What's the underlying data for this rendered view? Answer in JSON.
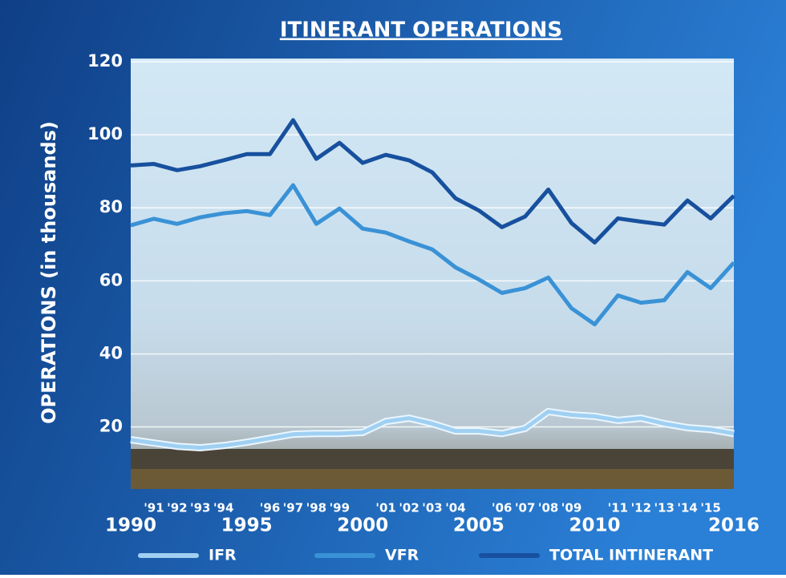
{
  "chart_data": {
    "type": "line",
    "title": "ITINERANT OPERATIONS",
    "y_label": "OPERATIONS (in thousands)",
    "x": [
      1990,
      1991,
      1992,
      1993,
      1994,
      1995,
      1996,
      1997,
      1998,
      1999,
      2000,
      2001,
      2002,
      2003,
      2004,
      2005,
      2006,
      2007,
      2008,
      2009,
      2010,
      2011,
      2012,
      2013,
      2014,
      2015,
      2016
    ],
    "series": [
      {
        "name": "IFR",
        "color": "#9fd0f2",
        "values": [
          16.5,
          15.6,
          14.7,
          14.3,
          14.9,
          15.8,
          16.9,
          18.0,
          18.2,
          18.2,
          18.5,
          21.5,
          22.4,
          20.9,
          18.9,
          18.9,
          18.2,
          19.6,
          24.2,
          23.3,
          22.9,
          21.8,
          22.4,
          20.9,
          19.8,
          19.3,
          18.2
        ]
      },
      {
        "name": "VFR",
        "color": "#3a92d6",
        "values": [
          75.2,
          77.0,
          75.6,
          77.4,
          78.5,
          79.1,
          78.0,
          86.2,
          75.6,
          79.8,
          74.3,
          73.2,
          70.8,
          68.6,
          63.7,
          60.4,
          56.7,
          58.0,
          60.9,
          52.5,
          48.1,
          56.0,
          54.0,
          54.7,
          62.4,
          58.0,
          65.0
        ]
      },
      {
        "name": "TOTAL INTINERANT",
        "color": "#17509e",
        "values": [
          91.6,
          92.0,
          90.3,
          91.4,
          93.0,
          94.7,
          94.7,
          104.0,
          93.4,
          97.8,
          92.3,
          94.5,
          93.0,
          89.7,
          82.6,
          79.3,
          74.7,
          77.6,
          85.0,
          75.8,
          70.5,
          77.1,
          76.2,
          75.4,
          82.0,
          77.1,
          83.3
        ]
      }
    ],
    "xlim": [
      1990,
      2016
    ],
    "xticks": [
      1990,
      {
        "value": 1991,
        "label": "'91"
      },
      {
        "value": 1992,
        "label": "'92"
      },
      {
        "value": 1993,
        "label": "'93"
      },
      {
        "value": 1994,
        "label": "'94"
      },
      1995,
      {
        "value": 1996,
        "label": "'96"
      },
      {
        "value": 1997,
        "label": "'97"
      },
      {
        "value": 1998,
        "label": "'98"
      },
      {
        "value": 1999,
        "label": "'99"
      },
      2000,
      {
        "value": 2001,
        "label": "'01"
      },
      {
        "value": 2002,
        "label": "'02"
      },
      {
        "value": 2003,
        "label": "'03"
      },
      {
        "value": 2004,
        "label": "'04"
      },
      2005,
      {
        "value": 2006,
        "label": "'06"
      },
      {
        "value": 2007,
        "label": "'07"
      },
      {
        "value": 2008,
        "label": "'08"
      },
      {
        "value": 2009,
        "label": "'09"
      },
      2010,
      {
        "value": 2011,
        "label": "'11"
      },
      {
        "value": 2012,
        "label": "'12"
      },
      {
        "value": 2013,
        "label": "'13"
      },
      {
        "value": 2014,
        "label": "'14"
      },
      {
        "value": 2015,
        "label": "'15"
      },
      2016
    ],
    "ylim": [
      3,
      120
    ],
    "yticks": [
      20,
      40,
      60,
      80,
      100,
      120
    ],
    "grid": true
  }
}
